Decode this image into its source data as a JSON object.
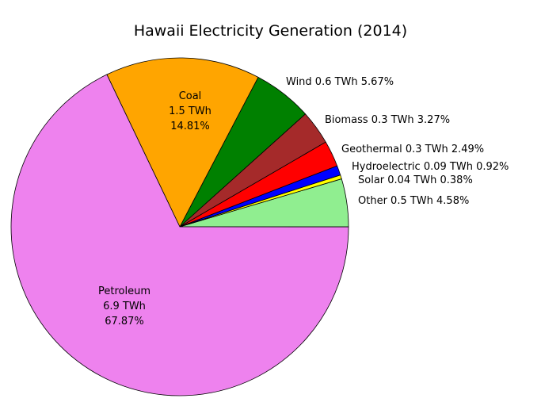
{
  "chart_data": {
    "type": "pie",
    "title": "Hawaii Electricity Generation (2014)",
    "start_angle_deg": 0,
    "direction": "counterclockwise",
    "slices": [
      {
        "name": "Other",
        "value_twh": "0.5",
        "percent": 4.58,
        "color": "#90ee90",
        "label": "Other 0.5 TWh 4.58%"
      },
      {
        "name": "Solar",
        "value_twh": "0.04",
        "percent": 0.38,
        "color": "#ffff00",
        "label": "Solar 0.04 TWh 0.38%"
      },
      {
        "name": "Hydroelectric",
        "value_twh": "0.09",
        "percent": 0.92,
        "color": "#0000ff",
        "label": "Hydroelectric 0.09 TWh 0.92%"
      },
      {
        "name": "Geothermal",
        "value_twh": "0.3",
        "percent": 2.49,
        "color": "#ff0000",
        "label": "Geothermal 0.3 TWh 2.49%"
      },
      {
        "name": "Biomass",
        "value_twh": "0.3",
        "percent": 3.27,
        "color": "#a52a2a",
        "label": "Biomass 0.3 TWh 3.27%"
      },
      {
        "name": "Wind",
        "value_twh": "0.6",
        "percent": 5.67,
        "color": "#008000",
        "label": "Wind 0.6 TWh 5.67%"
      },
      {
        "name": "Coal",
        "value_twh": "1.5",
        "percent": 14.81,
        "color": "#ffa500",
        "label_lines": [
          "Coal",
          "1.5 TWh",
          "14.81%"
        ]
      },
      {
        "name": "Petroleum",
        "value_twh": "6.9",
        "percent": 67.87,
        "color": "#ee82ee",
        "label_lines": [
          "Petroleum",
          "6.9 TWh",
          "67.87%"
        ]
      }
    ]
  }
}
